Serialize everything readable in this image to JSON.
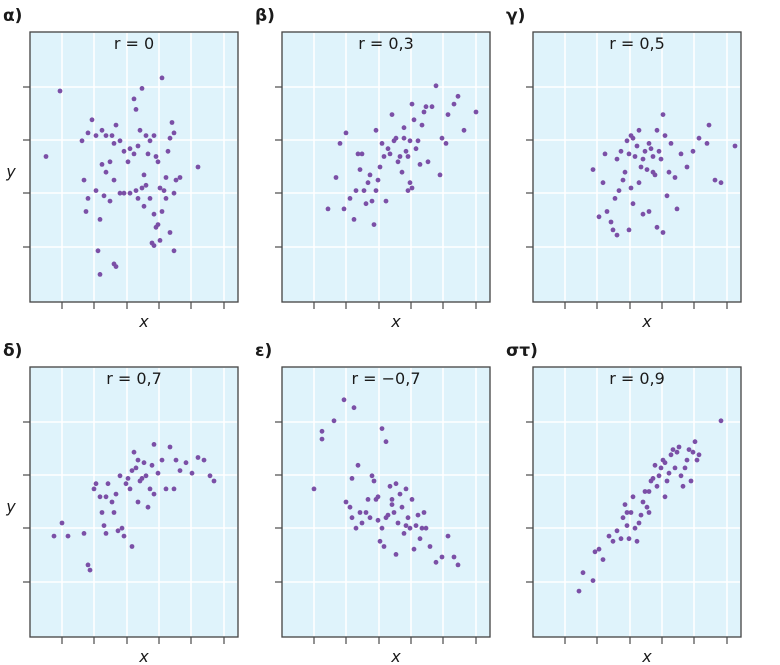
{
  "chart_data": [
    {
      "type": "scatter",
      "panel_label": "α)",
      "title": "r = 0",
      "xlabel": "x",
      "ylabel": "y",
      "xlim": [
        0,
        10
      ],
      "ylim": [
        0,
        10
      ],
      "grid": true,
      "points": [
        [
          0.6,
          5.4
        ],
        [
          1.3,
          7.9
        ],
        [
          2.4,
          6.0
        ],
        [
          2.7,
          6.3
        ],
        [
          2.5,
          4.5
        ],
        [
          2.7,
          3.8
        ],
        [
          2.6,
          3.3
        ],
        [
          2.9,
          6.8
        ],
        [
          3.1,
          6.2
        ],
        [
          3.4,
          6.4
        ],
        [
          3.6,
          6.2
        ],
        [
          3.9,
          6.2
        ],
        [
          3.4,
          5.1
        ],
        [
          3.6,
          4.8
        ],
        [
          3.8,
          5.2
        ],
        [
          4.0,
          5.9
        ],
        [
          4.1,
          6.6
        ],
        [
          4.3,
          6.0
        ],
        [
          4.5,
          5.6
        ],
        [
          4.8,
          5.7
        ],
        [
          5.0,
          7.6
        ],
        [
          5.1,
          7.2
        ],
        [
          5.3,
          6.4
        ],
        [
          5.4,
          8.0
        ],
        [
          5.6,
          6.2
        ],
        [
          5.8,
          6.0
        ],
        [
          6.0,
          6.2
        ],
        [
          6.1,
          5.4
        ],
        [
          5.7,
          5.5
        ],
        [
          5.5,
          4.7
        ],
        [
          5.4,
          4.2
        ],
        [
          5.1,
          4.1
        ],
        [
          4.8,
          4.0
        ],
        [
          4.5,
          4.0
        ],
        [
          4.3,
          4.0
        ],
        [
          4.0,
          4.5
        ],
        [
          3.8,
          3.7
        ],
        [
          3.5,
          3.9
        ],
        [
          3.3,
          3.0
        ],
        [
          3.1,
          4.1
        ],
        [
          3.2,
          1.8
        ],
        [
          3.3,
          0.9
        ],
        [
          4.0,
          1.3
        ],
        [
          4.1,
          1.2
        ],
        [
          5.2,
          3.8
        ],
        [
          5.5,
          3.5
        ],
        [
          5.8,
          3.8
        ],
        [
          6.0,
          3.2
        ],
        [
          6.2,
          2.8
        ],
        [
          6.4,
          3.3
        ],
        [
          6.5,
          4.1
        ],
        [
          6.6,
          4.6
        ],
        [
          6.7,
          5.6
        ],
        [
          6.8,
          6.1
        ],
        [
          6.9,
          6.7
        ],
        [
          7.0,
          6.3
        ],
        [
          7.1,
          4.5
        ],
        [
          7.3,
          4.6
        ],
        [
          7.0,
          4.0
        ],
        [
          6.6,
          3.8
        ],
        [
          6.3,
          2.2
        ],
        [
          6.0,
          2.0
        ],
        [
          5.9,
          2.1
        ],
        [
          6.1,
          2.7
        ],
        [
          6.3,
          4.2
        ],
        [
          6.4,
          8.4
        ],
        [
          6.8,
          2.5
        ],
        [
          7.0,
          1.8
        ],
        [
          4.7,
          5.2
        ],
        [
          5.0,
          5.5
        ],
        [
          5.2,
          5.8
        ],
        [
          5.6,
          4.3
        ],
        [
          6.2,
          5.2
        ],
        [
          8.2,
          5.0
        ]
      ]
    },
    {
      "type": "scatter",
      "panel_label": "β)",
      "title": "r = 0,3",
      "xlabel": "x",
      "ylabel": "",
      "xlim": [
        0,
        10
      ],
      "ylim": [
        0,
        10
      ],
      "grid": true,
      "points": [
        [
          2.1,
          3.4
        ],
        [
          2.5,
          4.6
        ],
        [
          2.7,
          5.9
        ],
        [
          2.9,
          3.4
        ],
        [
          3.0,
          6.3
        ],
        [
          3.2,
          3.8
        ],
        [
          3.4,
          3.0
        ],
        [
          3.5,
          4.1
        ],
        [
          3.6,
          5.5
        ],
        [
          3.7,
          4.9
        ],
        [
          3.8,
          5.5
        ],
        [
          3.9,
          4.1
        ],
        [
          4.0,
          3.6
        ],
        [
          4.1,
          4.4
        ],
        [
          4.2,
          4.7
        ],
        [
          4.3,
          3.7
        ],
        [
          4.4,
          2.8
        ],
        [
          4.5,
          4.1
        ],
        [
          4.6,
          4.5
        ],
        [
          4.7,
          5.0
        ],
        [
          4.8,
          5.9
        ],
        [
          4.9,
          5.4
        ],
        [
          5.0,
          3.7
        ],
        [
          5.1,
          5.7
        ],
        [
          5.2,
          5.5
        ],
        [
          5.3,
          7.0
        ],
        [
          5.4,
          6.0
        ],
        [
          5.5,
          6.1
        ],
        [
          5.6,
          5.2
        ],
        [
          5.8,
          4.8
        ],
        [
          5.9,
          6.5
        ],
        [
          6.0,
          5.6
        ],
        [
          6.1,
          4.1
        ],
        [
          6.2,
          6.0
        ],
        [
          6.3,
          7.4
        ],
        [
          6.4,
          6.8
        ],
        [
          6.5,
          5.7
        ],
        [
          6.6,
          6.0
        ],
        [
          6.7,
          5.1
        ],
        [
          6.8,
          6.6
        ],
        [
          6.9,
          7.1
        ],
        [
          7.0,
          7.3
        ],
        [
          7.1,
          5.2
        ],
        [
          7.3,
          7.3
        ],
        [
          7.5,
          8.1
        ],
        [
          7.7,
          4.7
        ],
        [
          7.8,
          6.1
        ],
        [
          8.0,
          5.9
        ],
        [
          8.1,
          7.0
        ],
        [
          8.4,
          7.4
        ],
        [
          8.6,
          7.7
        ],
        [
          8.9,
          6.4
        ],
        [
          9.5,
          7.1
        ],
        [
          6.2,
          4.4
        ],
        [
          6.1,
          5.4
        ],
        [
          5.9,
          6.1
        ],
        [
          5.7,
          5.4
        ],
        [
          6.3,
          4.2
        ],
        [
          4.5,
          6.4
        ]
      ]
    },
    {
      "type": "scatter",
      "panel_label": "γ)",
      "title": "r = 0,5",
      "xlabel": "x",
      "ylabel": "",
      "xlim": [
        0,
        10
      ],
      "ylim": [
        0,
        10
      ],
      "grid": true,
      "points": [
        [
          2.8,
          4.9
        ],
        [
          3.1,
          3.1
        ],
        [
          3.3,
          4.4
        ],
        [
          3.5,
          3.3
        ],
        [
          3.7,
          2.9
        ],
        [
          3.9,
          3.8
        ],
        [
          3.8,
          2.6
        ],
        [
          4.0,
          2.4
        ],
        [
          4.1,
          4.1
        ],
        [
          4.0,
          5.3
        ],
        [
          4.2,
          5.6
        ],
        [
          4.3,
          4.5
        ],
        [
          4.4,
          4.8
        ],
        [
          4.5,
          6.0
        ],
        [
          4.6,
          5.5
        ],
        [
          4.7,
          6.2
        ],
        [
          4.8,
          6.1
        ],
        [
          4.9,
          5.4
        ],
        [
          5.0,
          5.8
        ],
        [
          5.1,
          6.4
        ],
        [
          5.2,
          5.0
        ],
        [
          5.3,
          5.3
        ],
        [
          5.4,
          5.6
        ],
        [
          5.5,
          4.9
        ],
        [
          5.6,
          5.9
        ],
        [
          5.7,
          5.7
        ],
        [
          5.8,
          5.4
        ],
        [
          5.9,
          4.7
        ],
        [
          6.0,
          6.4
        ],
        [
          6.1,
          5.6
        ],
        [
          6.3,
          7.0
        ],
        [
          6.4,
          6.2
        ],
        [
          6.5,
          3.9
        ],
        [
          6.6,
          4.8
        ],
        [
          6.7,
          5.9
        ],
        [
          6.9,
          4.6
        ],
        [
          7.0,
          3.4
        ],
        [
          7.2,
          5.5
        ],
        [
          7.5,
          5.0
        ],
        [
          7.8,
          5.6
        ],
        [
          8.1,
          6.1
        ],
        [
          8.5,
          5.9
        ],
        [
          8.6,
          6.6
        ],
        [
          8.9,
          4.5
        ],
        [
          9.2,
          4.4
        ],
        [
          9.9,
          5.8
        ],
        [
          4.6,
          2.6
        ],
        [
          5.3,
          3.2
        ],
        [
          5.6,
          3.3
        ],
        [
          6.0,
          2.7
        ],
        [
          6.3,
          2.5
        ],
        [
          4.8,
          3.6
        ],
        [
          4.7,
          4.2
        ],
        [
          5.1,
          4.4
        ],
        [
          3.4,
          5.5
        ],
        [
          5.8,
          4.8
        ],
        [
          6.2,
          5.3
        ]
      ]
    },
    {
      "type": "scatter",
      "panel_label": "δ)",
      "title": "r = 0,7",
      "xlabel": "x",
      "ylabel": "y",
      "xlim": [
        0,
        10
      ],
      "ylim": [
        0,
        10
      ],
      "grid": true,
      "points": [
        [
          1.0,
          3.7
        ],
        [
          1.4,
          4.2
        ],
        [
          1.7,
          3.7
        ],
        [
          2.5,
          3.8
        ],
        [
          2.8,
          2.4
        ],
        [
          3.0,
          5.5
        ],
        [
          3.1,
          5.7
        ],
        [
          3.3,
          5.2
        ],
        [
          3.4,
          4.6
        ],
        [
          3.5,
          4.1
        ],
        [
          3.6,
          3.8
        ],
        [
          3.7,
          5.7
        ],
        [
          3.9,
          5.0
        ],
        [
          4.0,
          4.6
        ],
        [
          4.1,
          5.3
        ],
        [
          4.2,
          3.9
        ],
        [
          4.3,
          6.0
        ],
        [
          4.4,
          4.0
        ],
        [
          4.6,
          5.7
        ],
        [
          4.7,
          5.9
        ],
        [
          4.8,
          5.5
        ],
        [
          4.9,
          6.2
        ],
        [
          5.0,
          6.9
        ],
        [
          5.1,
          6.3
        ],
        [
          5.2,
          6.6
        ],
        [
          5.3,
          5.8
        ],
        [
          5.4,
          5.9
        ],
        [
          5.5,
          6.5
        ],
        [
          5.6,
          6.0
        ],
        [
          5.7,
          4.8
        ],
        [
          5.8,
          5.5
        ],
        [
          5.9,
          6.4
        ],
        [
          6.0,
          5.3
        ],
        [
          6.2,
          6.1
        ],
        [
          6.4,
          6.6
        ],
        [
          6.6,
          5.5
        ],
        [
          6.8,
          7.1
        ],
        [
          7.0,
          5.5
        ],
        [
          7.3,
          6.2
        ],
        [
          7.6,
          6.5
        ],
        [
          7.9,
          6.1
        ],
        [
          8.2,
          6.7
        ],
        [
          8.5,
          6.6
        ],
        [
          8.8,
          6.0
        ],
        [
          9.0,
          5.8
        ],
        [
          2.7,
          2.6
        ],
        [
          4.5,
          3.7
        ],
        [
          4.9,
          3.3
        ],
        [
          6.0,
          7.2
        ],
        [
          7.1,
          6.6
        ],
        [
          5.2,
          5.0
        ],
        [
          3.6,
          5.2
        ]
      ]
    },
    {
      "type": "scatter",
      "panel_label": "ε)",
      "title": "r = −0,7",
      "xlabel": "x",
      "ylabel": "",
      "xlim": [
        0,
        10
      ],
      "ylim": [
        0,
        10
      ],
      "grid": true,
      "points": [
        [
          1.4,
          5.5
        ],
        [
          1.8,
          7.4
        ],
        [
          1.8,
          7.7
        ],
        [
          2.4,
          8.1
        ],
        [
          2.9,
          8.9
        ],
        [
          3.4,
          8.6
        ],
        [
          3.3,
          5.9
        ],
        [
          3.0,
          5.0
        ],
        [
          3.2,
          4.8
        ],
        [
          3.3,
          4.4
        ],
        [
          3.5,
          4.0
        ],
        [
          3.7,
          4.6
        ],
        [
          3.8,
          4.2
        ],
        [
          4.0,
          4.6
        ],
        [
          4.1,
          5.1
        ],
        [
          4.2,
          4.4
        ],
        [
          4.3,
          6.0
        ],
        [
          4.5,
          5.1
        ],
        [
          4.6,
          4.3
        ],
        [
          4.7,
          3.5
        ],
        [
          4.8,
          4.0
        ],
        [
          4.9,
          3.3
        ],
        [
          5.0,
          4.4
        ],
        [
          5.1,
          4.5
        ],
        [
          5.2,
          5.6
        ],
        [
          5.3,
          5.1
        ],
        [
          5.4,
          4.6
        ],
        [
          5.5,
          5.7
        ],
        [
          5.6,
          4.2
        ],
        [
          5.7,
          5.3
        ],
        [
          5.8,
          4.8
        ],
        [
          5.9,
          3.8
        ],
        [
          6.0,
          4.1
        ],
        [
          6.1,
          4.4
        ],
        [
          6.2,
          4.0
        ],
        [
          6.3,
          5.1
        ],
        [
          6.4,
          3.2
        ],
        [
          6.5,
          4.1
        ],
        [
          6.6,
          4.5
        ],
        [
          6.7,
          3.6
        ],
        [
          6.8,
          4.0
        ],
        [
          6.9,
          4.6
        ],
        [
          7.0,
          4.0
        ],
        [
          7.2,
          3.3
        ],
        [
          7.5,
          2.7
        ],
        [
          7.8,
          2.9
        ],
        [
          8.1,
          3.7
        ],
        [
          8.4,
          2.9
        ],
        [
          8.6,
          2.6
        ],
        [
          5.0,
          7.3
        ],
        [
          4.4,
          5.8
        ],
        [
          4.6,
          5.2
        ],
        [
          5.3,
          4.9
        ],
        [
          5.5,
          3.0
        ],
        [
          6.0,
          5.5
        ],
        [
          3.6,
          6.4
        ],
        [
          4.8,
          7.8
        ]
      ]
    },
    {
      "type": "scatter",
      "panel_label": "στ)",
      "title": "r = 0,9",
      "xlabel": "x",
      "ylabel": "",
      "xlim": [
        0,
        10
      ],
      "ylim": [
        0,
        10
      ],
      "grid": true,
      "points": [
        [
          2.1,
          1.6
        ],
        [
          2.3,
          2.3
        ],
        [
          2.8,
          2.0
        ],
        [
          2.9,
          3.1
        ],
        [
          3.3,
          2.8
        ],
        [
          3.6,
          3.7
        ],
        [
          3.8,
          3.5
        ],
        [
          4.0,
          3.9
        ],
        [
          4.2,
          3.6
        ],
        [
          4.3,
          4.4
        ],
        [
          4.4,
          4.9
        ],
        [
          4.5,
          4.1
        ],
        [
          4.6,
          3.6
        ],
        [
          4.7,
          4.6
        ],
        [
          4.8,
          5.2
        ],
        [
          4.9,
          4.0
        ],
        [
          5.0,
          3.5
        ],
        [
          5.1,
          4.2
        ],
        [
          5.2,
          4.5
        ],
        [
          5.3,
          5.0
        ],
        [
          5.4,
          5.4
        ],
        [
          5.5,
          4.8
        ],
        [
          5.6,
          5.4
        ],
        [
          5.7,
          5.8
        ],
        [
          5.8,
          5.9
        ],
        [
          5.9,
          6.4
        ],
        [
          6.0,
          5.6
        ],
        [
          6.1,
          6.0
        ],
        [
          6.2,
          6.3
        ],
        [
          6.3,
          6.6
        ],
        [
          6.4,
          6.5
        ],
        [
          6.5,
          5.8
        ],
        [
          6.6,
          6.1
        ],
        [
          6.7,
          6.8
        ],
        [
          6.8,
          7.0
        ],
        [
          6.9,
          6.3
        ],
        [
          7.0,
          6.9
        ],
        [
          7.1,
          7.1
        ],
        [
          7.2,
          6.0
        ],
        [
          7.3,
          5.6
        ],
        [
          7.4,
          6.3
        ],
        [
          7.5,
          6.6
        ],
        [
          7.6,
          7.0
        ],
        [
          7.7,
          5.8
        ],
        [
          7.8,
          6.9
        ],
        [
          7.9,
          7.3
        ],
        [
          8.0,
          6.6
        ],
        [
          8.1,
          6.8
        ],
        [
          9.2,
          8.1
        ],
        [
          5.6,
          4.6
        ],
        [
          4.5,
          4.6
        ],
        [
          6.4,
          5.2
        ],
        [
          3.1,
          3.2
        ]
      ]
    }
  ],
  "colors": {
    "panel_bg": "#dff3fb",
    "grid": "#ffffff",
    "frame": "#4a4a4a",
    "point": "#7b4fa6"
  }
}
